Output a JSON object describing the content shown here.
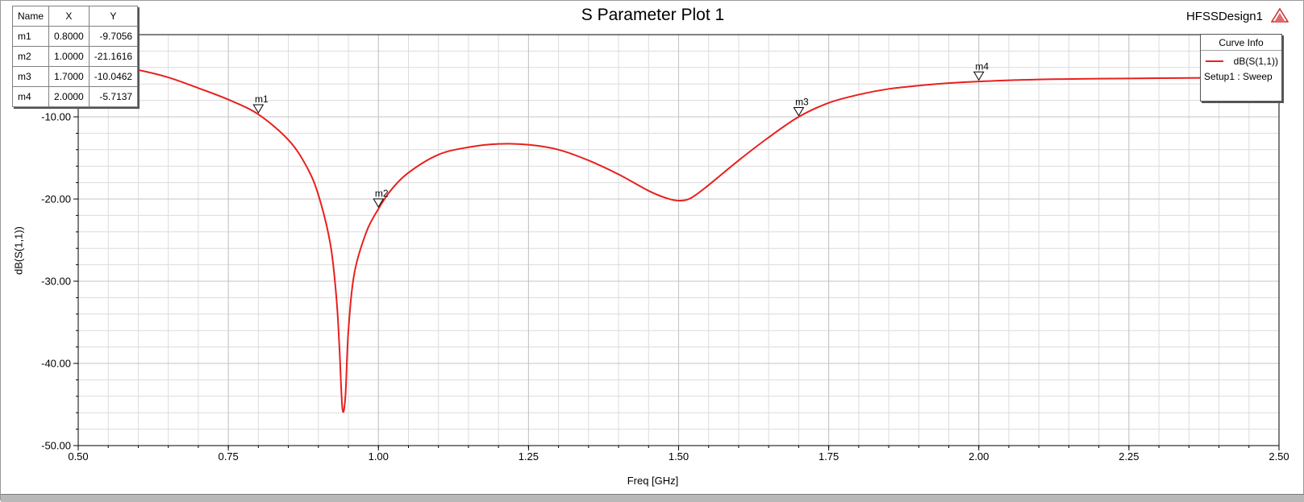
{
  "window": {
    "title": "S Parameter Plot 1",
    "design_name": "HFSSDesign1"
  },
  "marker_table": {
    "headers": [
      "Name",
      "X",
      "Y"
    ],
    "rows": [
      [
        "m1",
        "0.8000",
        "-9.7056"
      ],
      [
        "m2",
        "1.0000",
        "-21.1616"
      ],
      [
        "m3",
        "1.7000",
        "-10.0462"
      ],
      [
        "m4",
        "2.0000",
        "-5.7137"
      ]
    ]
  },
  "legend": {
    "title": "Curve Info",
    "entry_name": "dB(S(1,1))",
    "entry_sub": "Setup1 : Sweep"
  },
  "colors": {
    "curve": "#e8201e",
    "grid": "#dcdcdc",
    "axis": "#000000"
  },
  "chart_data": {
    "type": "line",
    "title": "S Parameter Plot 1",
    "xlabel": "Freq [GHz]",
    "ylabel": "dB(S(1,1))",
    "xlim": [
      0.5,
      2.5
    ],
    "ylim": [
      -50,
      0
    ],
    "x_ticks": [
      "0.50",
      "0.75",
      "1.00",
      "1.25",
      "1.50",
      "1.75",
      "2.00",
      "2.25",
      "2.50"
    ],
    "y_ticks": [
      "-10.00",
      "-20.00",
      "-30.00",
      "-40.00",
      "-50.00"
    ],
    "grid": true,
    "legend_position": "top-right",
    "series": [
      {
        "name": "dB(S(1,1))",
        "x": [
          0.5,
          0.55,
          0.6,
          0.65,
          0.7,
          0.75,
          0.8,
          0.85,
          0.88,
          0.9,
          0.92,
          0.93,
          0.935,
          0.94,
          0.945,
          0.95,
          0.96,
          0.98,
          1.0,
          1.02,
          1.05,
          1.1,
          1.15,
          1.2,
          1.25,
          1.3,
          1.35,
          1.4,
          1.45,
          1.48,
          1.5,
          1.52,
          1.55,
          1.6,
          1.65,
          1.7,
          1.75,
          1.8,
          1.85,
          1.9,
          1.95,
          2.0,
          2.1,
          2.2,
          2.3,
          2.4,
          2.5
        ],
        "y": [
          -3.2,
          -3.7,
          -4.3,
          -5.2,
          -6.5,
          -7.9,
          -9.7,
          -12.8,
          -16.0,
          -19.5,
          -25.5,
          -32.0,
          -38.0,
          -45.5,
          -44.0,
          -36.0,
          -29.0,
          -24.0,
          -21.2,
          -19.0,
          -16.8,
          -14.6,
          -13.7,
          -13.3,
          -13.4,
          -14.0,
          -15.3,
          -17.0,
          -19.0,
          -19.9,
          -20.2,
          -19.9,
          -18.3,
          -15.3,
          -12.5,
          -10.0,
          -8.3,
          -7.3,
          -6.6,
          -6.2,
          -5.9,
          -5.7,
          -5.45,
          -5.35,
          -5.3,
          -5.25,
          -5.2
        ]
      }
    ],
    "markers": [
      {
        "name": "m1",
        "x": 0.8,
        "y": -9.7056
      },
      {
        "name": "m2",
        "x": 1.0,
        "y": -21.1616
      },
      {
        "name": "m3",
        "x": 1.7,
        "y": -10.0462
      },
      {
        "name": "m4",
        "x": 2.0,
        "y": -5.7137
      }
    ]
  }
}
